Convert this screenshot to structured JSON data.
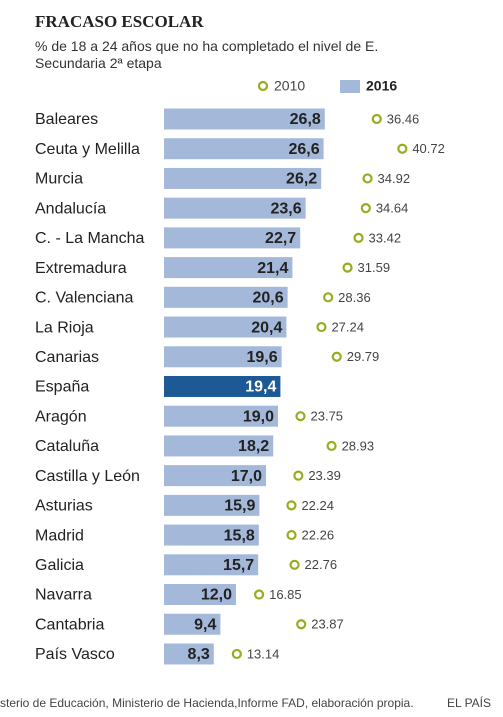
{
  "chart_data": {
    "type": "bar",
    "title": "FRACASO ESCOLAR",
    "subtitle": "% de 18 a 24 años que no ha completado el nivel de E. Secundaria 2ª etapa",
    "source": "sterio de Educación, Ministerio de Hacienda,Informe FAD, elaboración propia.",
    "credit": "EL PAÍS",
    "categories": [
      "Baleares",
      "Ceuta y Melilla",
      "Murcia",
      "Andalucía",
      "C.  - La Mancha",
      "Extremadura",
      "C. Valenciana",
      "La Rioja",
      "Canarias",
      "España",
      "Aragón",
      "Cataluña",
      "Castilla y León",
      "Asturias",
      "Madrid",
      "Galicia",
      "Navarra",
      "Cantabria",
      "País Vasco"
    ],
    "series": [
      {
        "name": "2016",
        "color": "#a4b8da",
        "colors": [
          "#a4b8da",
          "#a4b8da",
          "#a4b8da",
          "#a4b8da",
          "#a4b8da",
          "#a4b8da",
          "#a4b8da",
          "#a4b8da",
          "#a4b8da",
          "#1d5a95",
          "#a4b8da",
          "#a4b8da",
          "#a4b8da",
          "#a4b8da",
          "#a4b8da",
          "#a4b8da",
          "#a4b8da",
          "#a4b8da",
          "#a4b8da"
        ],
        "values": [
          26.8,
          26.6,
          26.2,
          23.6,
          22.7,
          21.4,
          20.6,
          20.4,
          19.6,
          19.4,
          19.0,
          18.2,
          17.0,
          15.9,
          15.8,
          15.7,
          12.0,
          9.4,
          8.3
        ],
        "value_labels": [
          "26,8",
          "26,6",
          "26,2",
          "23,6",
          "22,7",
          "21,4",
          "20,6",
          "20,4",
          "19,6",
          "19,4",
          "19,0",
          "18,2",
          "17,0",
          "15,9",
          "15,8",
          "15,7",
          "12,0",
          "9,4",
          "8,3"
        ]
      },
      {
        "name": "2010",
        "color": "#9aab1f",
        "values": [
          36.46,
          40.72,
          34.92,
          34.64,
          33.42,
          31.59,
          28.36,
          27.24,
          29.79,
          null,
          23.75,
          28.93,
          23.39,
          22.24,
          22.26,
          22.76,
          16.85,
          23.87,
          13.14
        ]
      }
    ]
  }
}
